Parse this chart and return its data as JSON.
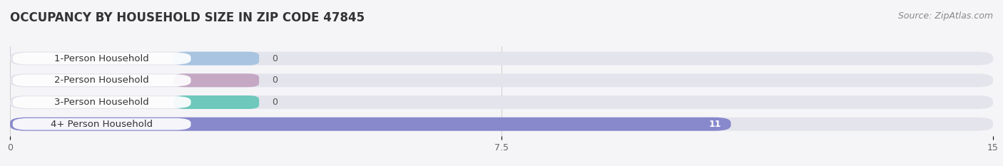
{
  "title": "OCCUPANCY BY HOUSEHOLD SIZE IN ZIP CODE 47845",
  "source": "Source: ZipAtlas.com",
  "categories": [
    "1-Person Household",
    "2-Person Household",
    "3-Person Household",
    "4+ Person Household"
  ],
  "values": [
    0,
    0,
    0,
    11
  ],
  "bar_colors": [
    "#a8c4e0",
    "#c4a8c4",
    "#6ec8bc",
    "#8888cc"
  ],
  "xlim": [
    0,
    15
  ],
  "xticks": [
    0,
    7.5,
    15
  ],
  "bg_color": "#f5f5f8",
  "bar_bg_color": "#e4e4ec",
  "label_box_color": "#ffffff",
  "bar_height": 0.62,
  "title_fontsize": 12,
  "source_fontsize": 9,
  "label_fontsize": 9.5,
  "value_fontsize": 9
}
